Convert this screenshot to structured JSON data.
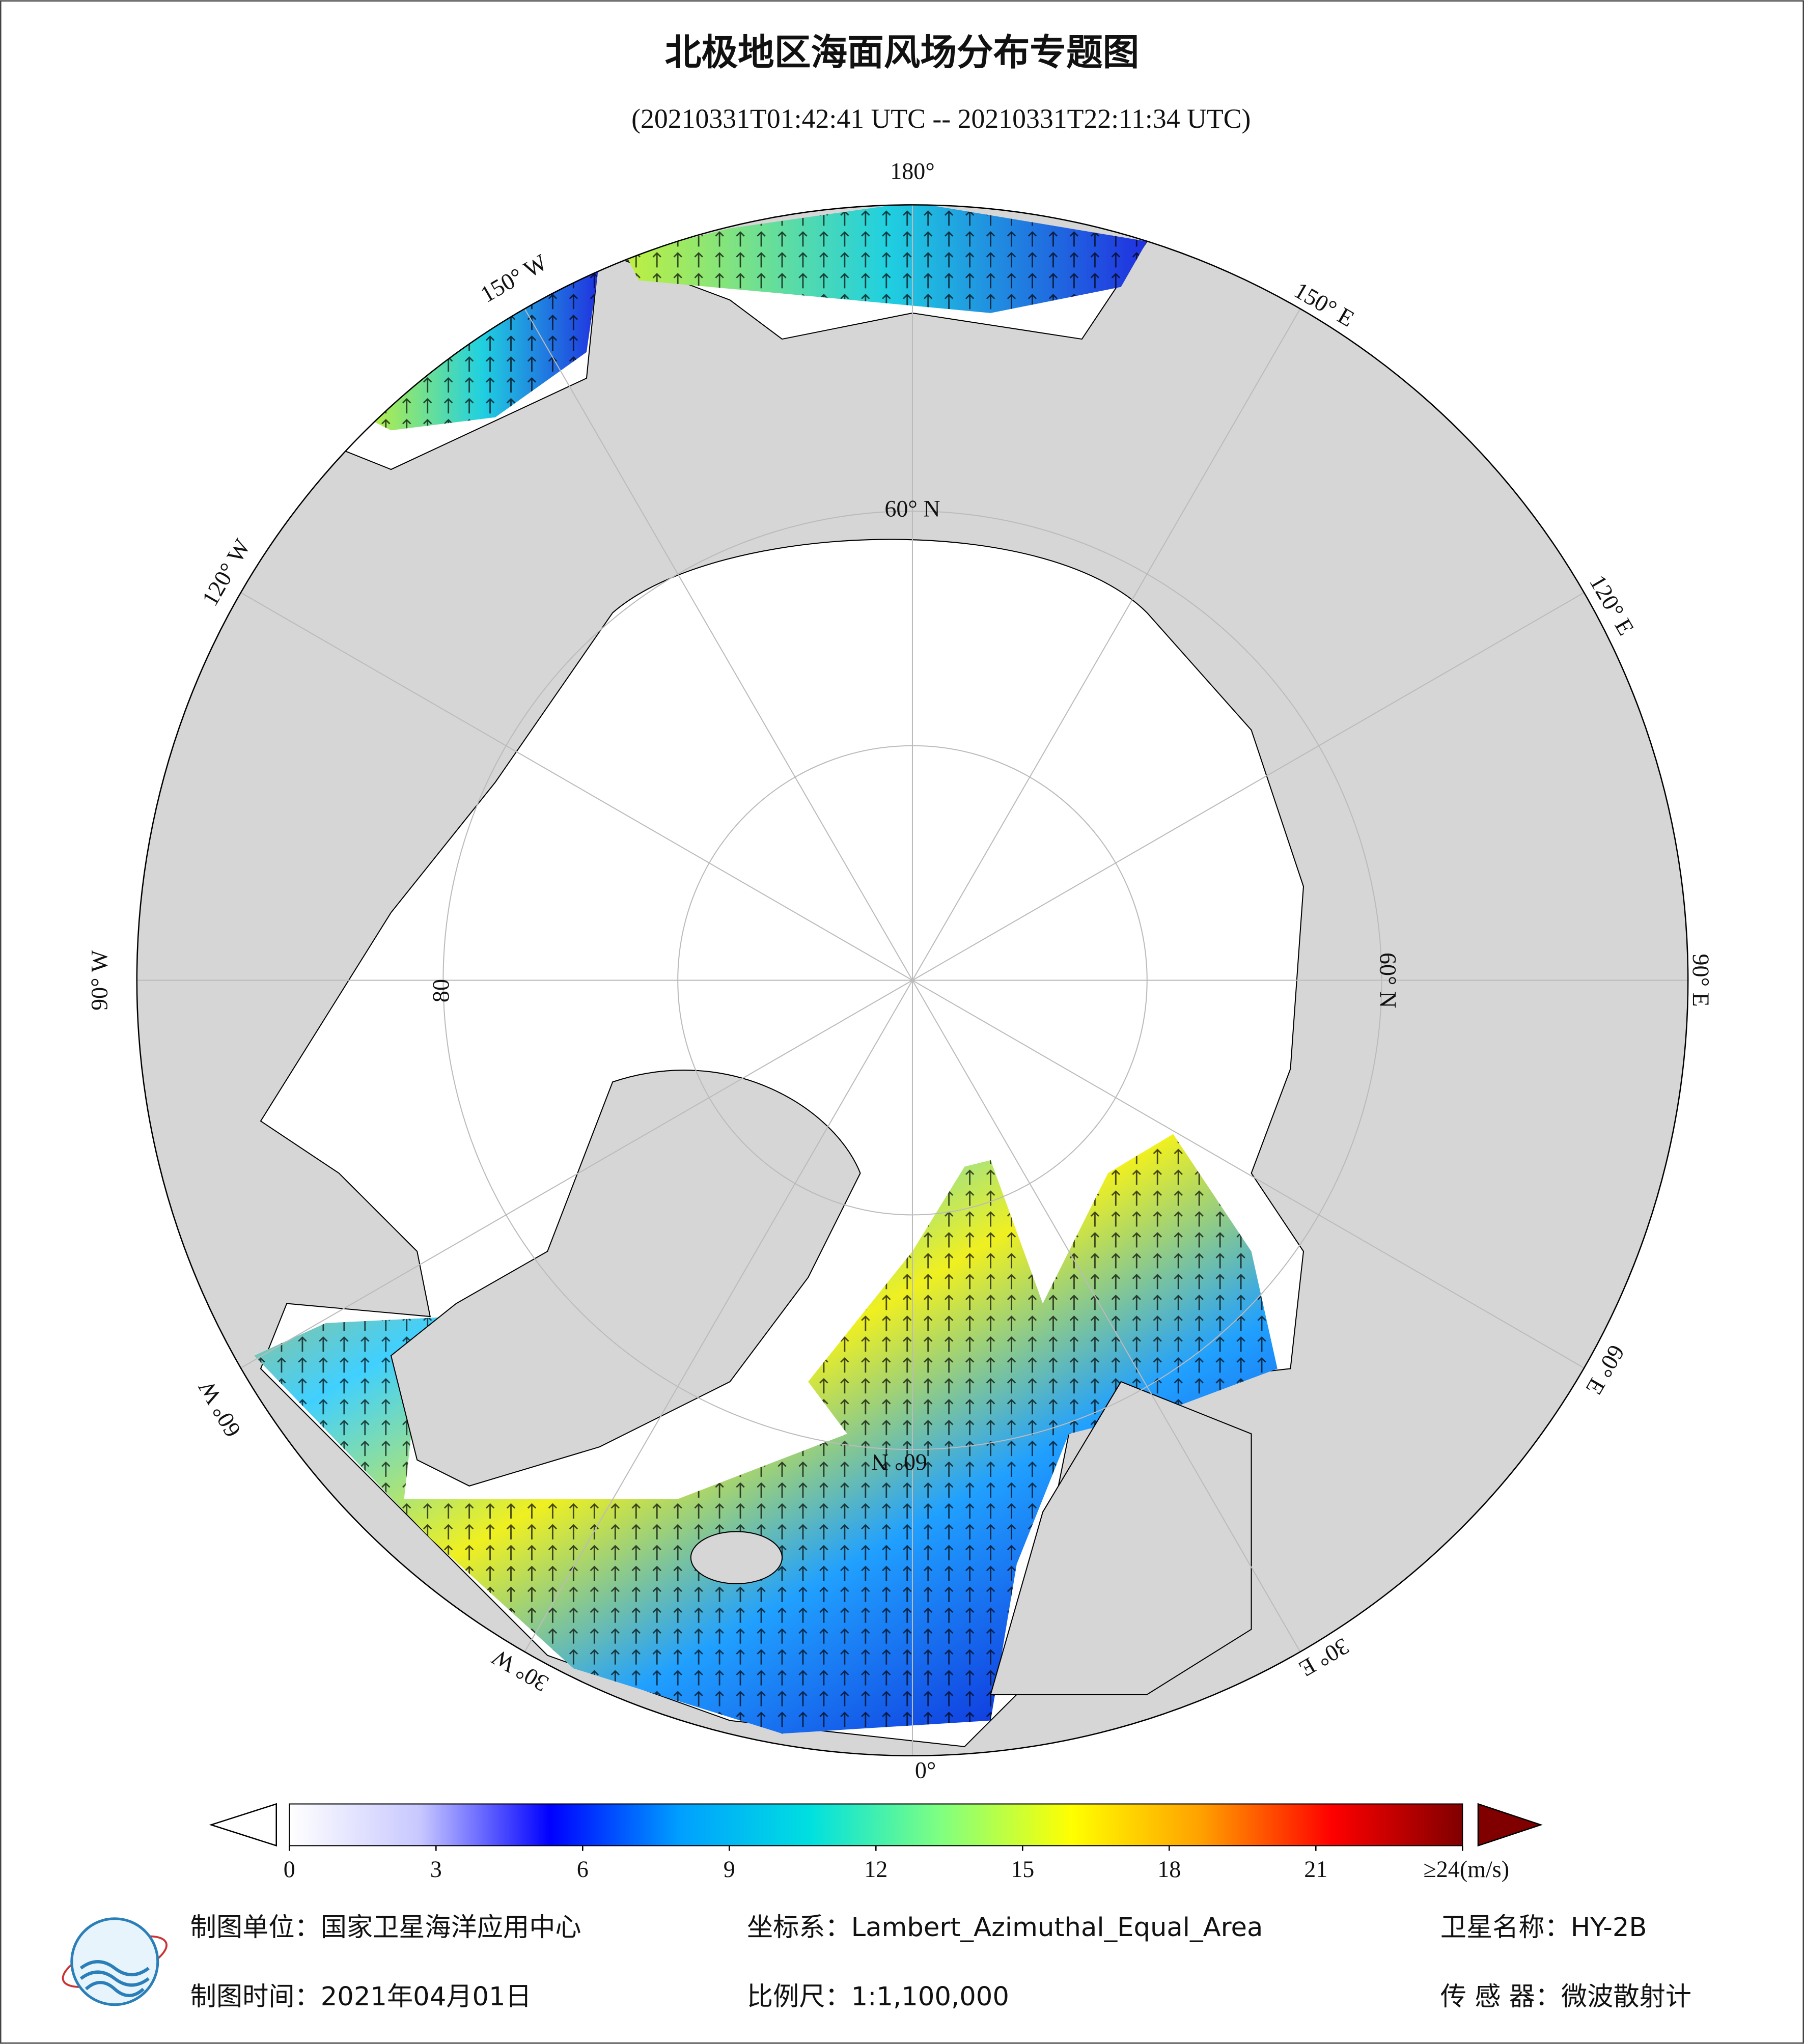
{
  "title": "北极地区海面风场分布专题图",
  "subtitle": "(20210331T01:42:41 UTC -- 20210331T22:11:34 UTC)",
  "map": {
    "labels": [
      "180°",
      "150° W",
      "150° E",
      "120° W",
      "120° E",
      "90° W",
      "90° E",
      "60° W",
      "60° E",
      "30° W",
      "30° E",
      "0°",
      "60° N",
      "60° N",
      "60° N",
      "80"
    ]
  },
  "colorbar": {
    "lim": [
      0,
      24
    ],
    "ticks": [
      0,
      3,
      6,
      9,
      12,
      15,
      18,
      21,
      {
        "value": 24,
        "label": "≥24(m/s)"
      }
    ],
    "colors": [
      "#ffffff",
      "#c8c8ff",
      "#0000ff",
      "#00a0ff",
      "#00e0e0",
      "#80ff80",
      "#ffff00",
      "#ffa000",
      "#ff0000",
      "#800000"
    ]
  },
  "footer": {
    "unit": "制图单位：国家卫星海洋应用中心",
    "crs": "坐标系：Lambert_Azimuthal_Equal_Area",
    "satellite": "卫星名称：HY-2B",
    "date": "制图时间：2021年04月01日",
    "scale": "比例尺：1:1,100,000",
    "sensor": "传 感 器：微波散射计"
  }
}
